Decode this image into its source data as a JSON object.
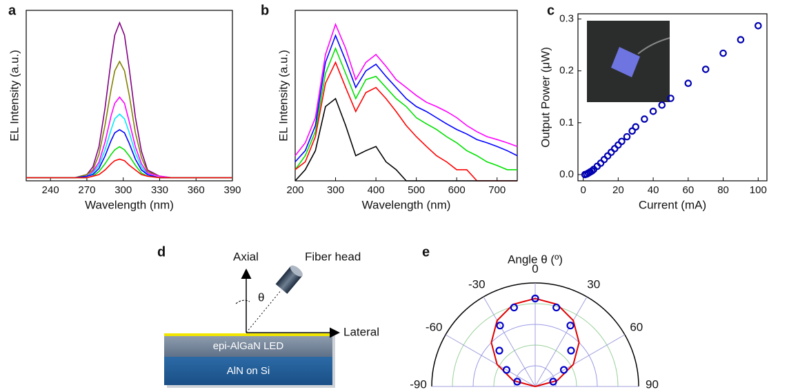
{
  "chart_data": [
    {
      "type": "line",
      "panel_label": "a",
      "xlabel": "Wavelength (nm)",
      "ylabel": "EL Intensity (a.u.)",
      "x": [
        220,
        240,
        260,
        270,
        275,
        280,
        285,
        290,
        293,
        297,
        301,
        305,
        310,
        315,
        320,
        330,
        340,
        360,
        390
      ],
      "xlim": [
        220,
        390
      ],
      "xticks": [
        240,
        270,
        300,
        330,
        360,
        390
      ],
      "ylim": [
        0,
        1.1
      ],
      "series": [
        {
          "color": "#800080",
          "values": [
            0.02,
            0.02,
            0.02,
            0.04,
            0.09,
            0.22,
            0.47,
            0.78,
            0.94,
            1.02,
            0.94,
            0.72,
            0.41,
            0.19,
            0.07,
            0.03,
            0.02,
            0.02,
            0.02
          ]
        },
        {
          "color": "#808000",
          "values": [
            0.02,
            0.02,
            0.02,
            0.04,
            0.07,
            0.17,
            0.36,
            0.59,
            0.71,
            0.77,
            0.71,
            0.55,
            0.31,
            0.15,
            0.06,
            0.03,
            0.02,
            0.02,
            0.02
          ]
        },
        {
          "color": "#ff00ff",
          "values": [
            0.02,
            0.02,
            0.02,
            0.03,
            0.06,
            0.12,
            0.25,
            0.42,
            0.5,
            0.54,
            0.5,
            0.38,
            0.22,
            0.11,
            0.05,
            0.03,
            0.02,
            0.02,
            0.02
          ]
        },
        {
          "color": "#00e8ff",
          "values": [
            0.02,
            0.02,
            0.02,
            0.03,
            0.05,
            0.1,
            0.2,
            0.33,
            0.4,
            0.43,
            0.4,
            0.31,
            0.18,
            0.09,
            0.04,
            0.02,
            0.02,
            0.02,
            0.02
          ]
        },
        {
          "color": "#0000ff",
          "values": [
            0.02,
            0.02,
            0.02,
            0.03,
            0.04,
            0.08,
            0.16,
            0.26,
            0.31,
            0.33,
            0.31,
            0.24,
            0.14,
            0.07,
            0.04,
            0.02,
            0.02,
            0.02,
            0.02
          ]
        },
        {
          "color": "#00e000",
          "values": [
            0.02,
            0.02,
            0.02,
            0.02,
            0.03,
            0.06,
            0.11,
            0.17,
            0.2,
            0.22,
            0.2,
            0.16,
            0.1,
            0.05,
            0.03,
            0.02,
            0.02,
            0.02,
            0.02
          ]
        },
        {
          "color": "#ff0000",
          "values": [
            0.02,
            0.02,
            0.02,
            0.02,
            0.03,
            0.04,
            0.07,
            0.11,
            0.13,
            0.14,
            0.13,
            0.1,
            0.07,
            0.04,
            0.03,
            0.02,
            0.02,
            0.02,
            0.02
          ]
        }
      ]
    },
    {
      "type": "line",
      "panel_label": "b",
      "xlabel": "Wavelength (nm)",
      "ylabel": "EL Intensity (a.u.)",
      "log_y": true,
      "x": [
        200,
        225,
        250,
        275,
        300,
        325,
        350,
        375,
        400,
        425,
        450,
        475,
        500,
        525,
        550,
        575,
        600,
        625,
        650,
        675,
        700,
        725,
        750
      ],
      "xlim": [
        200,
        750
      ],
      "xticks": [
        200,
        300,
        400,
        500,
        600,
        700
      ],
      "ylim": [
        0.2,
        100
      ],
      "series": [
        {
          "color": "#ff00ff",
          "values": [
            0.5,
            0.8,
            2,
            20,
            60,
            25,
            8,
            15,
            20,
            13,
            8,
            6,
            4.5,
            3.5,
            3,
            2.5,
            2,
            1.5,
            1.2,
            1,
            0.9,
            0.8,
            0.7
          ]
        },
        {
          "color": "#0000ff",
          "values": [
            0.4,
            0.6,
            1.5,
            15,
            40,
            16,
            6,
            11,
            14,
            9,
            6,
            4,
            3,
            2.5,
            2,
            1.6,
            1.3,
            1.1,
            0.9,
            0.8,
            0.7,
            0.6,
            0.5
          ]
        },
        {
          "color": "#00e000",
          "values": [
            0.3,
            0.5,
            1.2,
            10,
            25,
            10,
            4,
            8,
            9,
            6,
            4,
            3,
            2,
            1.6,
            1.3,
            1,
            0.8,
            0.6,
            0.5,
            0.4,
            0.35,
            0.3,
            0.3
          ]
        },
        {
          "color": "#ff0000",
          "values": [
            0.3,
            0.4,
            1,
            7,
            15,
            6,
            2.5,
            5,
            6,
            4,
            2.5,
            1.5,
            1,
            0.7,
            0.5,
            0.4,
            0.3,
            0.3,
            0.2,
            0.2,
            0.2,
            0.2,
            0.2
          ]
        },
        {
          "color": "#000000",
          "values": [
            0.2,
            0.3,
            0.6,
            3,
            4,
            1.5,
            0.5,
            0.6,
            0.7,
            0.4,
            0.3,
            0.2,
            0.2,
            0.2,
            0.2,
            0.2,
            0.2,
            0.2,
            0.2,
            0.2,
            0.2,
            0.2,
            0.2
          ]
        }
      ]
    },
    {
      "type": "scatter",
      "panel_label": "c",
      "xlabel": "Current (mA)",
      "ylabel": "Output Power (μW)",
      "x": [
        1,
        2,
        3,
        4,
        5,
        6,
        8,
        10,
        12,
        14,
        16,
        18,
        20,
        22,
        25,
        28,
        30,
        35,
        40,
        45,
        50,
        60,
        70,
        80,
        90,
        100
      ],
      "xlim": [
        -3,
        105
      ],
      "xticks": [
        0,
        20,
        40,
        60,
        80,
        100
      ],
      "ylim": [
        -0.012,
        0.31
      ],
      "yticks": [
        {
          "value": 0,
          "label": "0.0"
        },
        0.1,
        0.2,
        0.3
      ],
      "series": [
        {
          "color": "#0000b0",
          "values": [
            0,
            0.001,
            0.003,
            0.005,
            0.007,
            0.01,
            0.016,
            0.022,
            0.029,
            0.036,
            0.043,
            0.05,
            0.057,
            0.064,
            0.073,
            0.084,
            0.092,
            0.107,
            0.122,
            0.134,
            0.147,
            0.176,
            0.203,
            0.234,
            0.26,
            0.287
          ]
        }
      ]
    },
    {
      "type": "polar",
      "panel_label": "e",
      "title": "Angle θ (º)",
      "rlim": [
        0,
        1
      ],
      "rticks": [
        0.2,
        0.4,
        0.6,
        0.8,
        1
      ],
      "thetaticks": [
        -90,
        -60,
        -30,
        0,
        30,
        60,
        90
      ],
      "points": {
        "color": "#0000c8",
        "theta": [
          -75,
          -60,
          -45,
          -30,
          -15,
          0,
          15,
          30,
          45,
          60,
          75
        ],
        "r": [
          0.18,
          0.32,
          0.49,
          0.68,
          0.79,
          0.85,
          0.79,
          0.68,
          0.49,
          0.32,
          0.18
        ]
      },
      "curve": {
        "color": "#e00000",
        "theta": [
          -90,
          -75,
          -60,
          -45,
          -30,
          -15,
          0,
          15,
          30,
          45,
          60,
          75,
          90
        ],
        "r": [
          0,
          0.22,
          0.425,
          0.6,
          0.736,
          0.821,
          0.85,
          0.821,
          0.736,
          0.6,
          0.425,
          0.22,
          0
        ]
      }
    }
  ],
  "diagram": {
    "panel_label": "d",
    "axial": "Axial",
    "fiber_head": "Fiber head",
    "theta": "θ",
    "lateral": "Lateral",
    "layers": [
      "epi-AlGaN LED",
      "AlN on Si"
    ]
  }
}
